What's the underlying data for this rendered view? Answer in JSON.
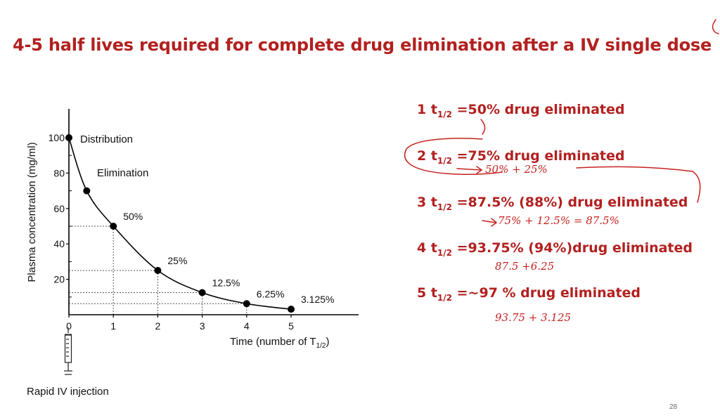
{
  "slide": {
    "title": "4-5 half lives required for complete drug elimination after a IV single dose",
    "page_number": "28"
  },
  "chart_data": {
    "type": "line",
    "xlabel": "Time (number of T",
    "xlabel_sub": "1/2",
    "xlabel_close": ")",
    "ylabel": "Plasma concentration (mg/ml)",
    "xlim": [
      0,
      5.6
    ],
    "ylim": [
      0,
      100
    ],
    "x_ticks": [
      "0",
      "1",
      "2",
      "3",
      "4",
      "5"
    ],
    "y_ticks": [
      "100",
      "80",
      "60",
      "40",
      "20"
    ],
    "series": [
      {
        "x": [
          0,
          0.4,
          1,
          2,
          3,
          4,
          5
        ],
        "y": [
          100,
          70,
          50,
          25,
          12.5,
          6.25,
          3.125
        ]
      }
    ],
    "point_labels": [
      "50%",
      "25%",
      "12.5%",
      "6.25%",
      "3.125%"
    ],
    "annotations": {
      "distribution": "Distribution",
      "elimination": "Elimination",
      "injection": "Rapid IV injection"
    },
    "grid": false
  },
  "bullets": [
    {
      "prefix": "1 t",
      "sub": "1/2",
      "text": " =50% drug eliminated"
    },
    {
      "prefix": "2 t",
      "sub": "1/2",
      "text": " =75% drug eliminated"
    },
    {
      "prefix": "3 t",
      "sub": "1/2",
      "text": " =87.5% (88%) drug eliminated"
    },
    {
      "prefix": "4 t",
      "sub": "1/2",
      "text": " =93.75% (94%)drug eliminated"
    },
    {
      "prefix": "5 t",
      "sub": "1/2",
      "text": " =~97 % drug eliminated"
    }
  ],
  "handwritten_notes": {
    "note_2": "50% + 25%",
    "note_3": "75% + 12.5% = 87.5%",
    "note_4": "87.5 +6.25",
    "note_5": "93.75 + 3.125"
  },
  "colors": {
    "title": "#b2201f",
    "ink": "#c4221f",
    "curve": "#000000",
    "guide": "#555555"
  }
}
